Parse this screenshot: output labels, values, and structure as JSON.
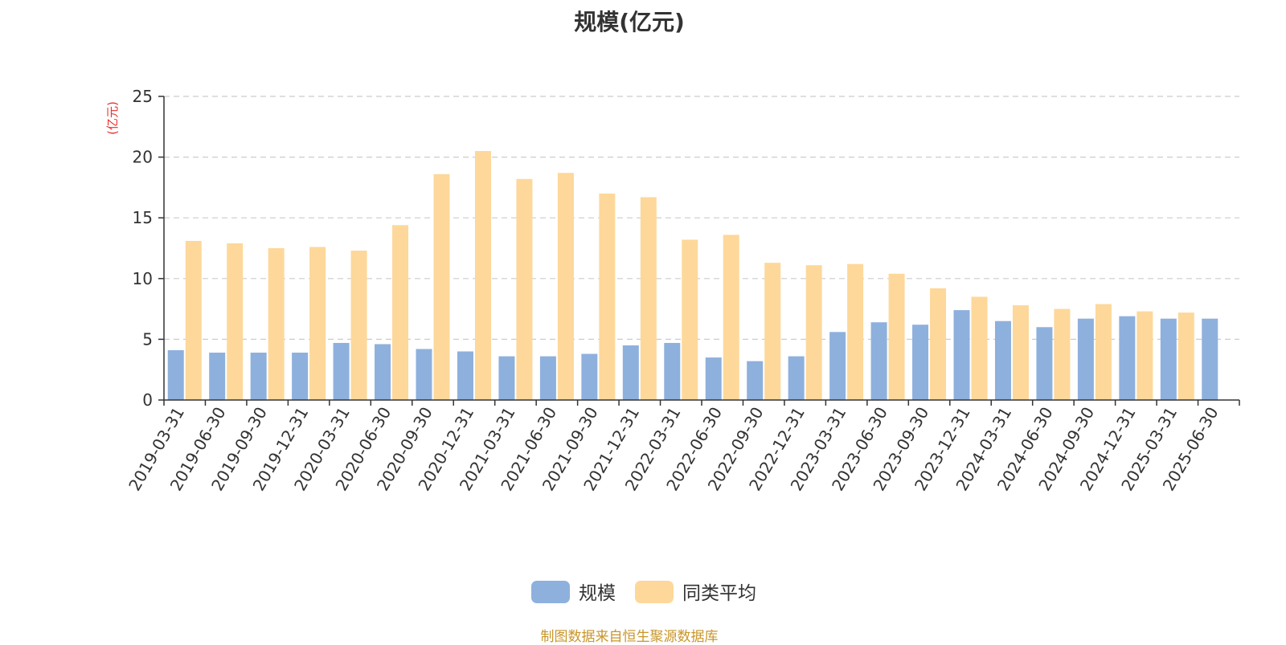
{
  "chart_data": {
    "type": "bar",
    "title": "规模(亿元)",
    "ylabel": "(亿元)",
    "xlabel": "",
    "ylim": [
      0,
      25
    ],
    "yticks": [
      0,
      5,
      10,
      15,
      20,
      25
    ],
    "grid": true,
    "legend_position": "bottom-center",
    "categories": [
      "2019-03-31",
      "2019-06-30",
      "2019-09-30",
      "2019-12-31",
      "2020-03-31",
      "2020-06-30",
      "2020-09-30",
      "2020-12-31",
      "2021-03-31",
      "2021-06-30",
      "2021-09-30",
      "2021-12-31",
      "2022-03-31",
      "2022-06-30",
      "2022-09-30",
      "2022-12-31",
      "2023-03-31",
      "2023-06-30",
      "2023-09-30",
      "2023-12-31",
      "2024-03-31",
      "2024-06-30",
      "2024-09-30",
      "2024-12-31",
      "2025-03-31",
      "2025-06-30"
    ],
    "series": [
      {
        "name": "规模",
        "color": "#8eb0dd",
        "values": [
          4.1,
          3.9,
          3.9,
          3.9,
          4.7,
          4.6,
          4.2,
          4.0,
          3.6,
          3.6,
          3.8,
          4.5,
          4.7,
          3.5,
          3.2,
          3.6,
          5.6,
          6.4,
          6.2,
          7.4,
          6.5,
          6.0,
          6.7,
          6.9,
          6.7,
          6.7
        ]
      },
      {
        "name": "同类平均",
        "color": "#fdd89a",
        "values": [
          13.1,
          12.9,
          12.5,
          12.6,
          12.3,
          14.4,
          18.6,
          20.5,
          18.2,
          18.7,
          17.0,
          16.7,
          13.2,
          13.6,
          11.3,
          11.1,
          11.2,
          10.4,
          9.2,
          8.5,
          7.8,
          7.5,
          7.9,
          7.3,
          7.2,
          null
        ]
      }
    ]
  },
  "source_note": "制图数据来自恒生聚源数据库",
  "colors": {
    "axis": "#333333",
    "grid": "#cccccc",
    "unit_label": "#e8302e",
    "source": "#c9962a"
  }
}
